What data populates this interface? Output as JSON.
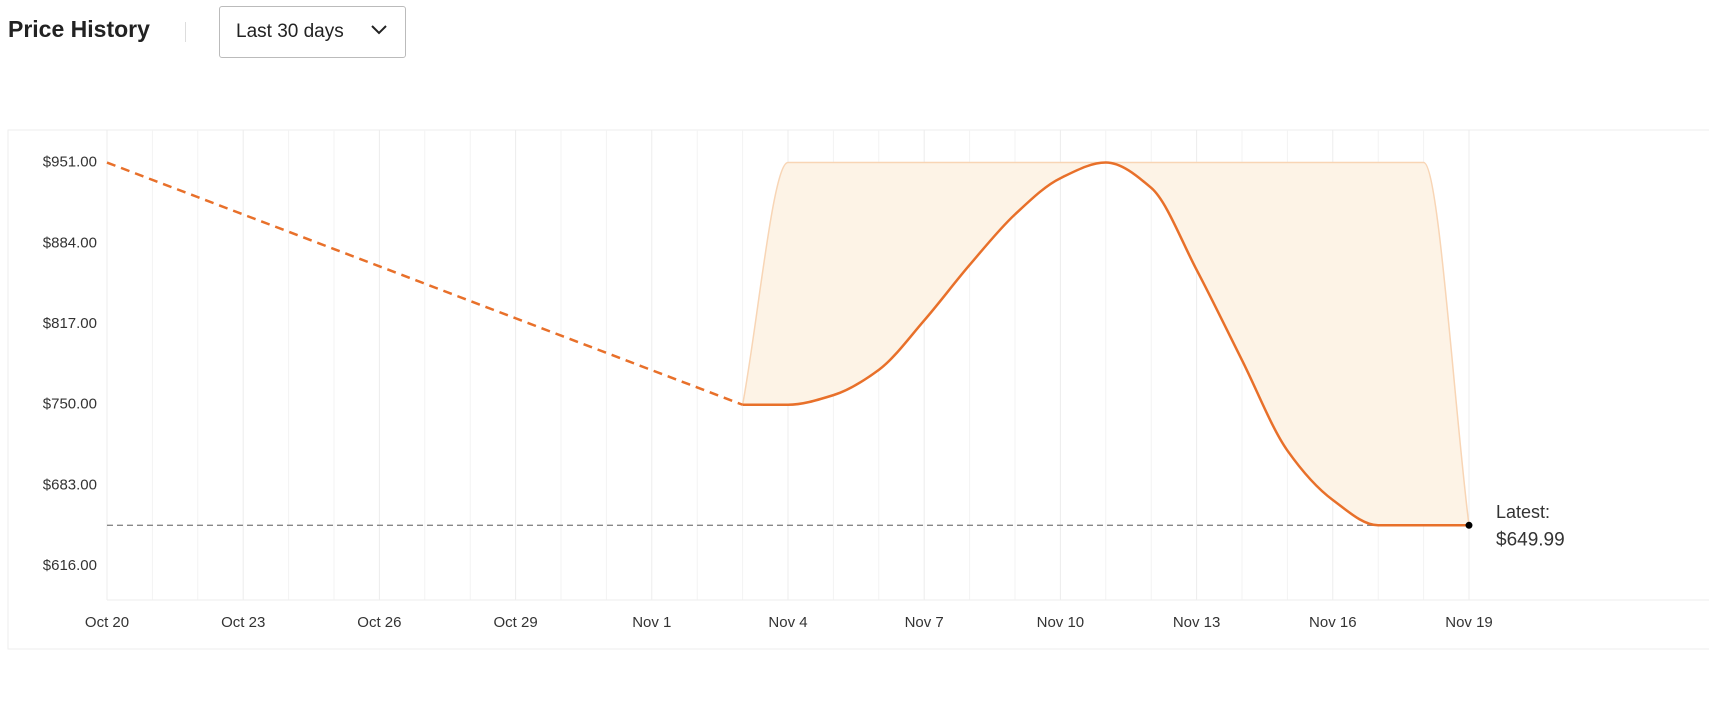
{
  "header": {
    "title": "Price History",
    "range_select": "Last 30 days"
  },
  "chart_data": {
    "type": "line",
    "categories": [
      "Oct 20",
      null,
      null,
      "Oct 23",
      null,
      null,
      "Oct 26",
      null,
      null,
      "Oct 29",
      null,
      null,
      "Nov 1",
      null,
      null,
      "Nov 4",
      null,
      null,
      "Nov 7",
      null,
      null,
      "Nov 10",
      null,
      null,
      "Nov 13",
      null,
      null,
      "Nov 16",
      null,
      null,
      "Nov 19"
    ],
    "ylim": [
      588,
      978
    ],
    "yticks": [
      {
        "value": 616,
        "label": "$616.00"
      },
      {
        "value": 683,
        "label": "$683.00"
      },
      {
        "value": 750,
        "label": "$750.00"
      },
      {
        "value": 817,
        "label": "$817.00"
      },
      {
        "value": 884,
        "label": "$884.00"
      },
      {
        "value": 951,
        "label": "$951.00"
      }
    ],
    "grid": true,
    "series": [
      {
        "color": "#e8702a",
        "dashed": true,
        "values": [
          951,
          936.6,
          922.3,
          907.9,
          893.6,
          879.2,
          864.9,
          850.5,
          836.1,
          821.8,
          807.4,
          793.1,
          778.7,
          764.4,
          750,
          null,
          null,
          null,
          null,
          null,
          null,
          null,
          null,
          null,
          null,
          null,
          null,
          null,
          null,
          null,
          null
        ]
      },
      {
        "color": "#e8702a",
        "dashed": false,
        "values": [
          null,
          null,
          null,
          null,
          null,
          null,
          null,
          null,
          null,
          null,
          null,
          null,
          null,
          null,
          750,
          750,
          758,
          779,
          820,
          866,
          908,
          938,
          951,
          930,
          862,
          787,
          712,
          671,
          649.99,
          649.99,
          649.99
        ]
      }
    ],
    "band": {
      "color": "#fdf3e6",
      "edge_color": "#f8d5b5",
      "high": [
        null,
        null,
        null,
        null,
        null,
        null,
        null,
        null,
        null,
        null,
        null,
        null,
        null,
        null,
        750,
        951,
        951,
        951,
        951,
        951,
        951,
        951,
        951,
        951,
        951,
        951,
        951,
        951,
        951,
        951,
        649.99
      ]
    },
    "latest": {
      "label": "Latest:",
      "value": 649.99,
      "value_label": "$649.99"
    }
  }
}
